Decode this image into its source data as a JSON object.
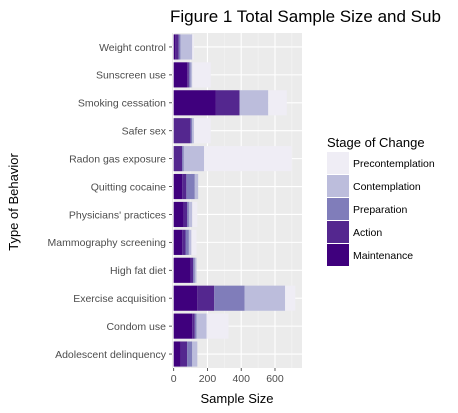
{
  "chart_data": {
    "type": "bar",
    "orientation": "horizontal",
    "stacked": true,
    "title": "Figure 1  Total Sample Size and Sub",
    "xlabel": "Sample Size",
    "ylabel": "Type of Behavior",
    "xlim": [
      -10,
      760
    ],
    "xticks": [
      0,
      200,
      400,
      600
    ],
    "grid": true,
    "legend_position": "right",
    "legend_title": "Stage of Change",
    "categories": [
      "Weight control",
      "Sunscreen use",
      "Smoking cessation",
      "Safer sex",
      "Radon gas exposure",
      "Quitting cocaine",
      "Physicians' practices",
      "Mammography screening",
      "High fat diet",
      "Exercise acquisition",
      "Condom use",
      "Adolescent delinquency"
    ],
    "series": [
      {
        "name": "Maintenance",
        "color": "#3f007d",
        "values": [
          10,
          80,
          250,
          0,
          0,
          50,
          60,
          50,
          100,
          140,
          110,
          40
        ]
      },
      {
        "name": "Action",
        "color": "#54278f",
        "values": [
          20,
          10,
          140,
          100,
          50,
          25,
          20,
          20,
          15,
          100,
          15,
          40
        ]
      },
      {
        "name": "Preparation",
        "color": "#807dba",
        "values": [
          10,
          10,
          0,
          10,
          10,
          50,
          10,
          20,
          10,
          180,
          10,
          30
        ]
      },
      {
        "name": "Contemplation",
        "color": "#bcbddc",
        "values": [
          70,
          10,
          170,
          10,
          120,
          20,
          20,
          15,
          10,
          240,
          60,
          30
        ]
      },
      {
        "name": "Precontemplation",
        "color": "#efedf5",
        "values": [
          10,
          110,
          110,
          100,
          520,
          0,
          30,
          30,
          0,
          60,
          130,
          0
        ]
      }
    ],
    "legend_order": [
      "Precontemplation",
      "Contemplation",
      "Preparation",
      "Action",
      "Maintenance"
    ]
  }
}
